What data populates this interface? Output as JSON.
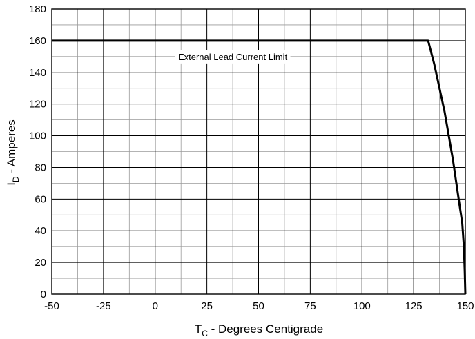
{
  "chart_data": {
    "type": "line",
    "xlabel": {
      "main": "T",
      "sub": "C",
      "rest": " - Degrees Centigrade"
    },
    "ylabel": {
      "main": "I",
      "sub": "D",
      "rest": " - Amperes"
    },
    "xlim": [
      -50,
      150
    ],
    "ylim": [
      0,
      180
    ],
    "x_ticks": [
      -50,
      -25,
      0,
      25,
      50,
      75,
      100,
      125,
      150
    ],
    "y_ticks": [
      0,
      20,
      40,
      60,
      80,
      100,
      120,
      140,
      160,
      180
    ],
    "x_minor_step": 12.5,
    "y_minor_step": 10,
    "grid": true,
    "annotation": "External Lead Current Limit",
    "annotation_anchor": {
      "x": 37.5,
      "y": 160
    },
    "series": [
      {
        "points": [
          {
            "x": -50,
            "y": 160
          },
          {
            "x": 132,
            "y": 160
          },
          {
            "x": 135,
            "y": 145
          },
          {
            "x": 140,
            "y": 115
          },
          {
            "x": 144,
            "y": 85
          },
          {
            "x": 147,
            "y": 58
          },
          {
            "x": 148.5,
            "y": 45
          },
          {
            "x": 149.3,
            "y": 30
          },
          {
            "x": 149.7,
            "y": 15
          },
          {
            "x": 150,
            "y": 0
          }
        ]
      }
    ]
  }
}
